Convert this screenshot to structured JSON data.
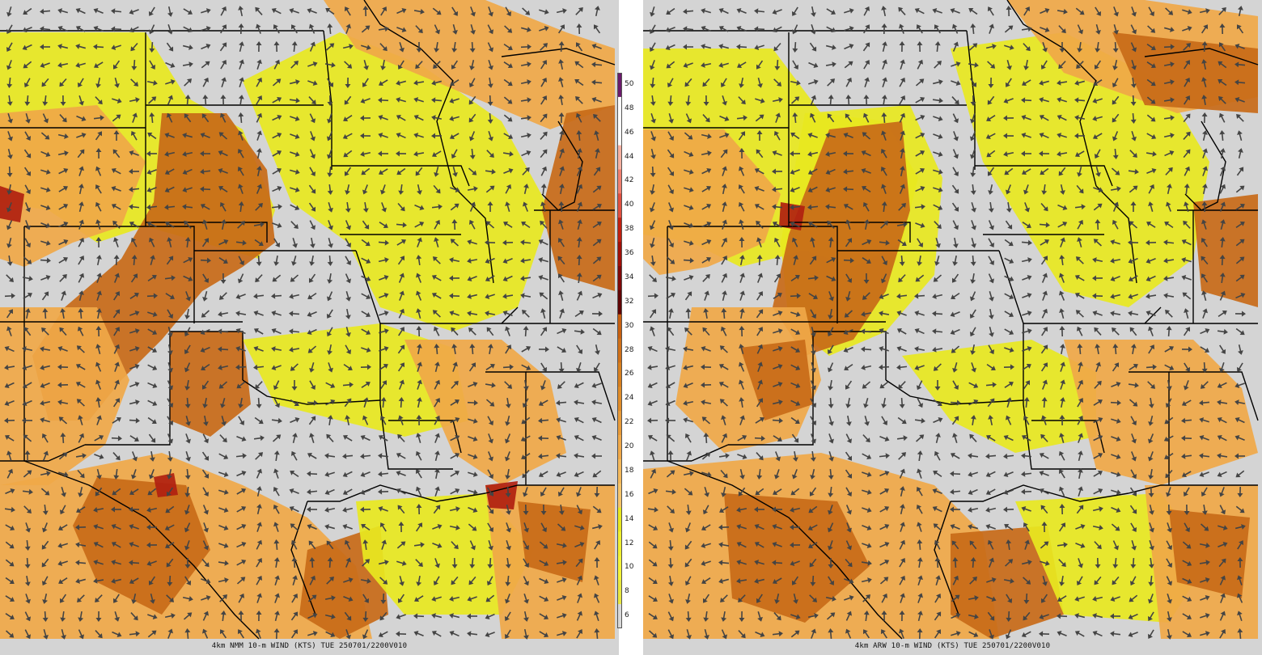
{
  "panels": [
    {
      "id": "left",
      "caption": "4km NMM 10-m WIND (KTS) TUE 250701/2200V010"
    },
    {
      "id": "right",
      "caption": "4km ARW 10-m WIND (KTS) TUE 250701/2200V010"
    }
  ],
  "colorbar": {
    "labels": [
      "50",
      "48",
      "46",
      "44",
      "42",
      "40",
      "38",
      "36",
      "34",
      "32",
      "30",
      "28",
      "26",
      "24",
      "22",
      "20",
      "18",
      "16",
      "14",
      "12",
      "10",
      "8",
      "6"
    ],
    "colors": [
      "#6b1a6b",
      "#ffffff",
      "#ffffff",
      "#f6b0a0",
      "#f08070",
      "#e05040",
      "#c02010",
      "#a01008",
      "#800808",
      "#600404",
      "#c86010",
      "#d07018",
      "#d8801e",
      "#e08c28",
      "#e89a38",
      "#f0a848",
      "#f4b85a",
      "#f6c46a",
      "#e8e820",
      "#f0f030",
      "#f4f438",
      "#e8e840",
      "#d8d8d8"
    ]
  },
  "palette": {
    "background": "#d4d4d4",
    "light_wind": "#e8e820",
    "moderate_wind": "#f0a848",
    "strong_wind": "#c86a18",
    "very_strong_wind": "#b02010",
    "state_borders": "#000000",
    "wind_arrows": "#444444"
  }
}
